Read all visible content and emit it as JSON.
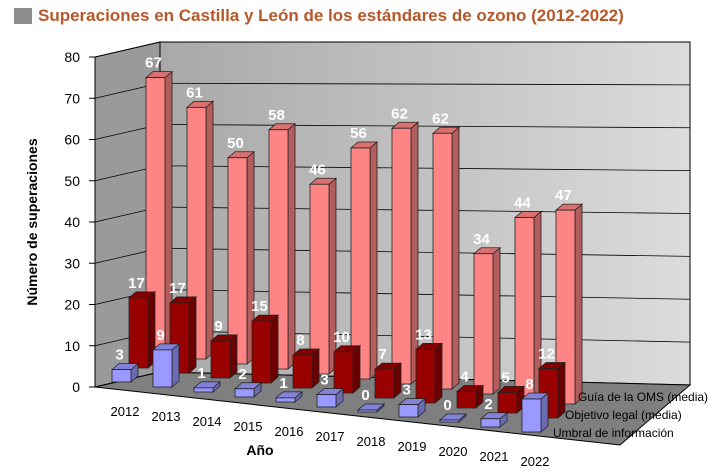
{
  "chart_data": {
    "type": "bar",
    "title": "Superaciones en Castilla y León de los estándares de ozono (2012-2022)",
    "xlabel": "Año",
    "ylabel": "Número de superaciones",
    "ylim": [
      0,
      80
    ],
    "yticks": [
      "0",
      "10",
      "20",
      "30",
      "40",
      "50",
      "60",
      "70",
      "80"
    ],
    "categories": [
      "2012",
      "2013",
      "2014",
      "2015",
      "2016",
      "2017",
      "2018",
      "2019",
      "2020",
      "2021",
      "2022"
    ],
    "series": [
      {
        "name": "Umbral de información",
        "color": "#9999ff",
        "values": [
          3,
          9,
          1,
          2,
          1,
          3,
          0,
          3,
          0,
          2,
          8
        ]
      },
      {
        "name": "Objetivo legal (media)",
        "color": "#990000",
        "values": [
          17,
          17,
          9,
          15,
          8,
          10,
          7,
          13,
          4,
          5,
          12
        ]
      },
      {
        "name": "Guía de la OMS (media)",
        "color": "#ff8585",
        "values": [
          67,
          61,
          50,
          58,
          46,
          56,
          62,
          62,
          34,
          44,
          47
        ]
      }
    ],
    "grid": true,
    "legend": "bottom-right"
  }
}
